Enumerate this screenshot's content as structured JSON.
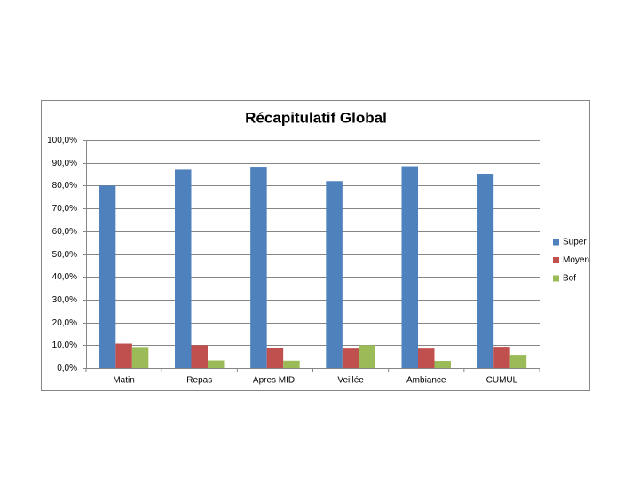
{
  "chart_data": {
    "type": "bar",
    "title": "Récapitulatif Global",
    "categories": [
      "Matin",
      "Repas",
      "Apres MIDI",
      "Veillée",
      "Ambiance",
      "CUMUL"
    ],
    "series": [
      {
        "name": "Super",
        "color": "#4f81bd",
        "values": [
          80,
          87,
          88.3,
          82,
          88.5,
          85.2
        ]
      },
      {
        "name": "Moyen",
        "color": "#c0504d",
        "values": [
          10.7,
          10,
          8.7,
          8.5,
          8.5,
          9.3
        ]
      },
      {
        "name": "Bof",
        "color": "#9bbb59",
        "values": [
          9.2,
          3.3,
          3.2,
          10,
          3.1,
          5.8
        ]
      }
    ],
    "ylim": [
      0,
      100
    ],
    "yticks": [
      {
        "value": 0,
        "label": "0,0%"
      },
      {
        "value": 10,
        "label": "10,0%"
      },
      {
        "value": 20,
        "label": "20,0%"
      },
      {
        "value": 30,
        "label": "30,0%"
      },
      {
        "value": 40,
        "label": "40,0%"
      },
      {
        "value": 50,
        "label": "50,0%"
      },
      {
        "value": 60,
        "label": "60,0%"
      },
      {
        "value": 70,
        "label": "70,0%"
      },
      {
        "value": 80,
        "label": "80,0%"
      },
      {
        "value": 90,
        "label": "90,0%"
      },
      {
        "value": 100,
        "label": "100,0%"
      }
    ],
    "grid": true,
    "legend": "right"
  }
}
